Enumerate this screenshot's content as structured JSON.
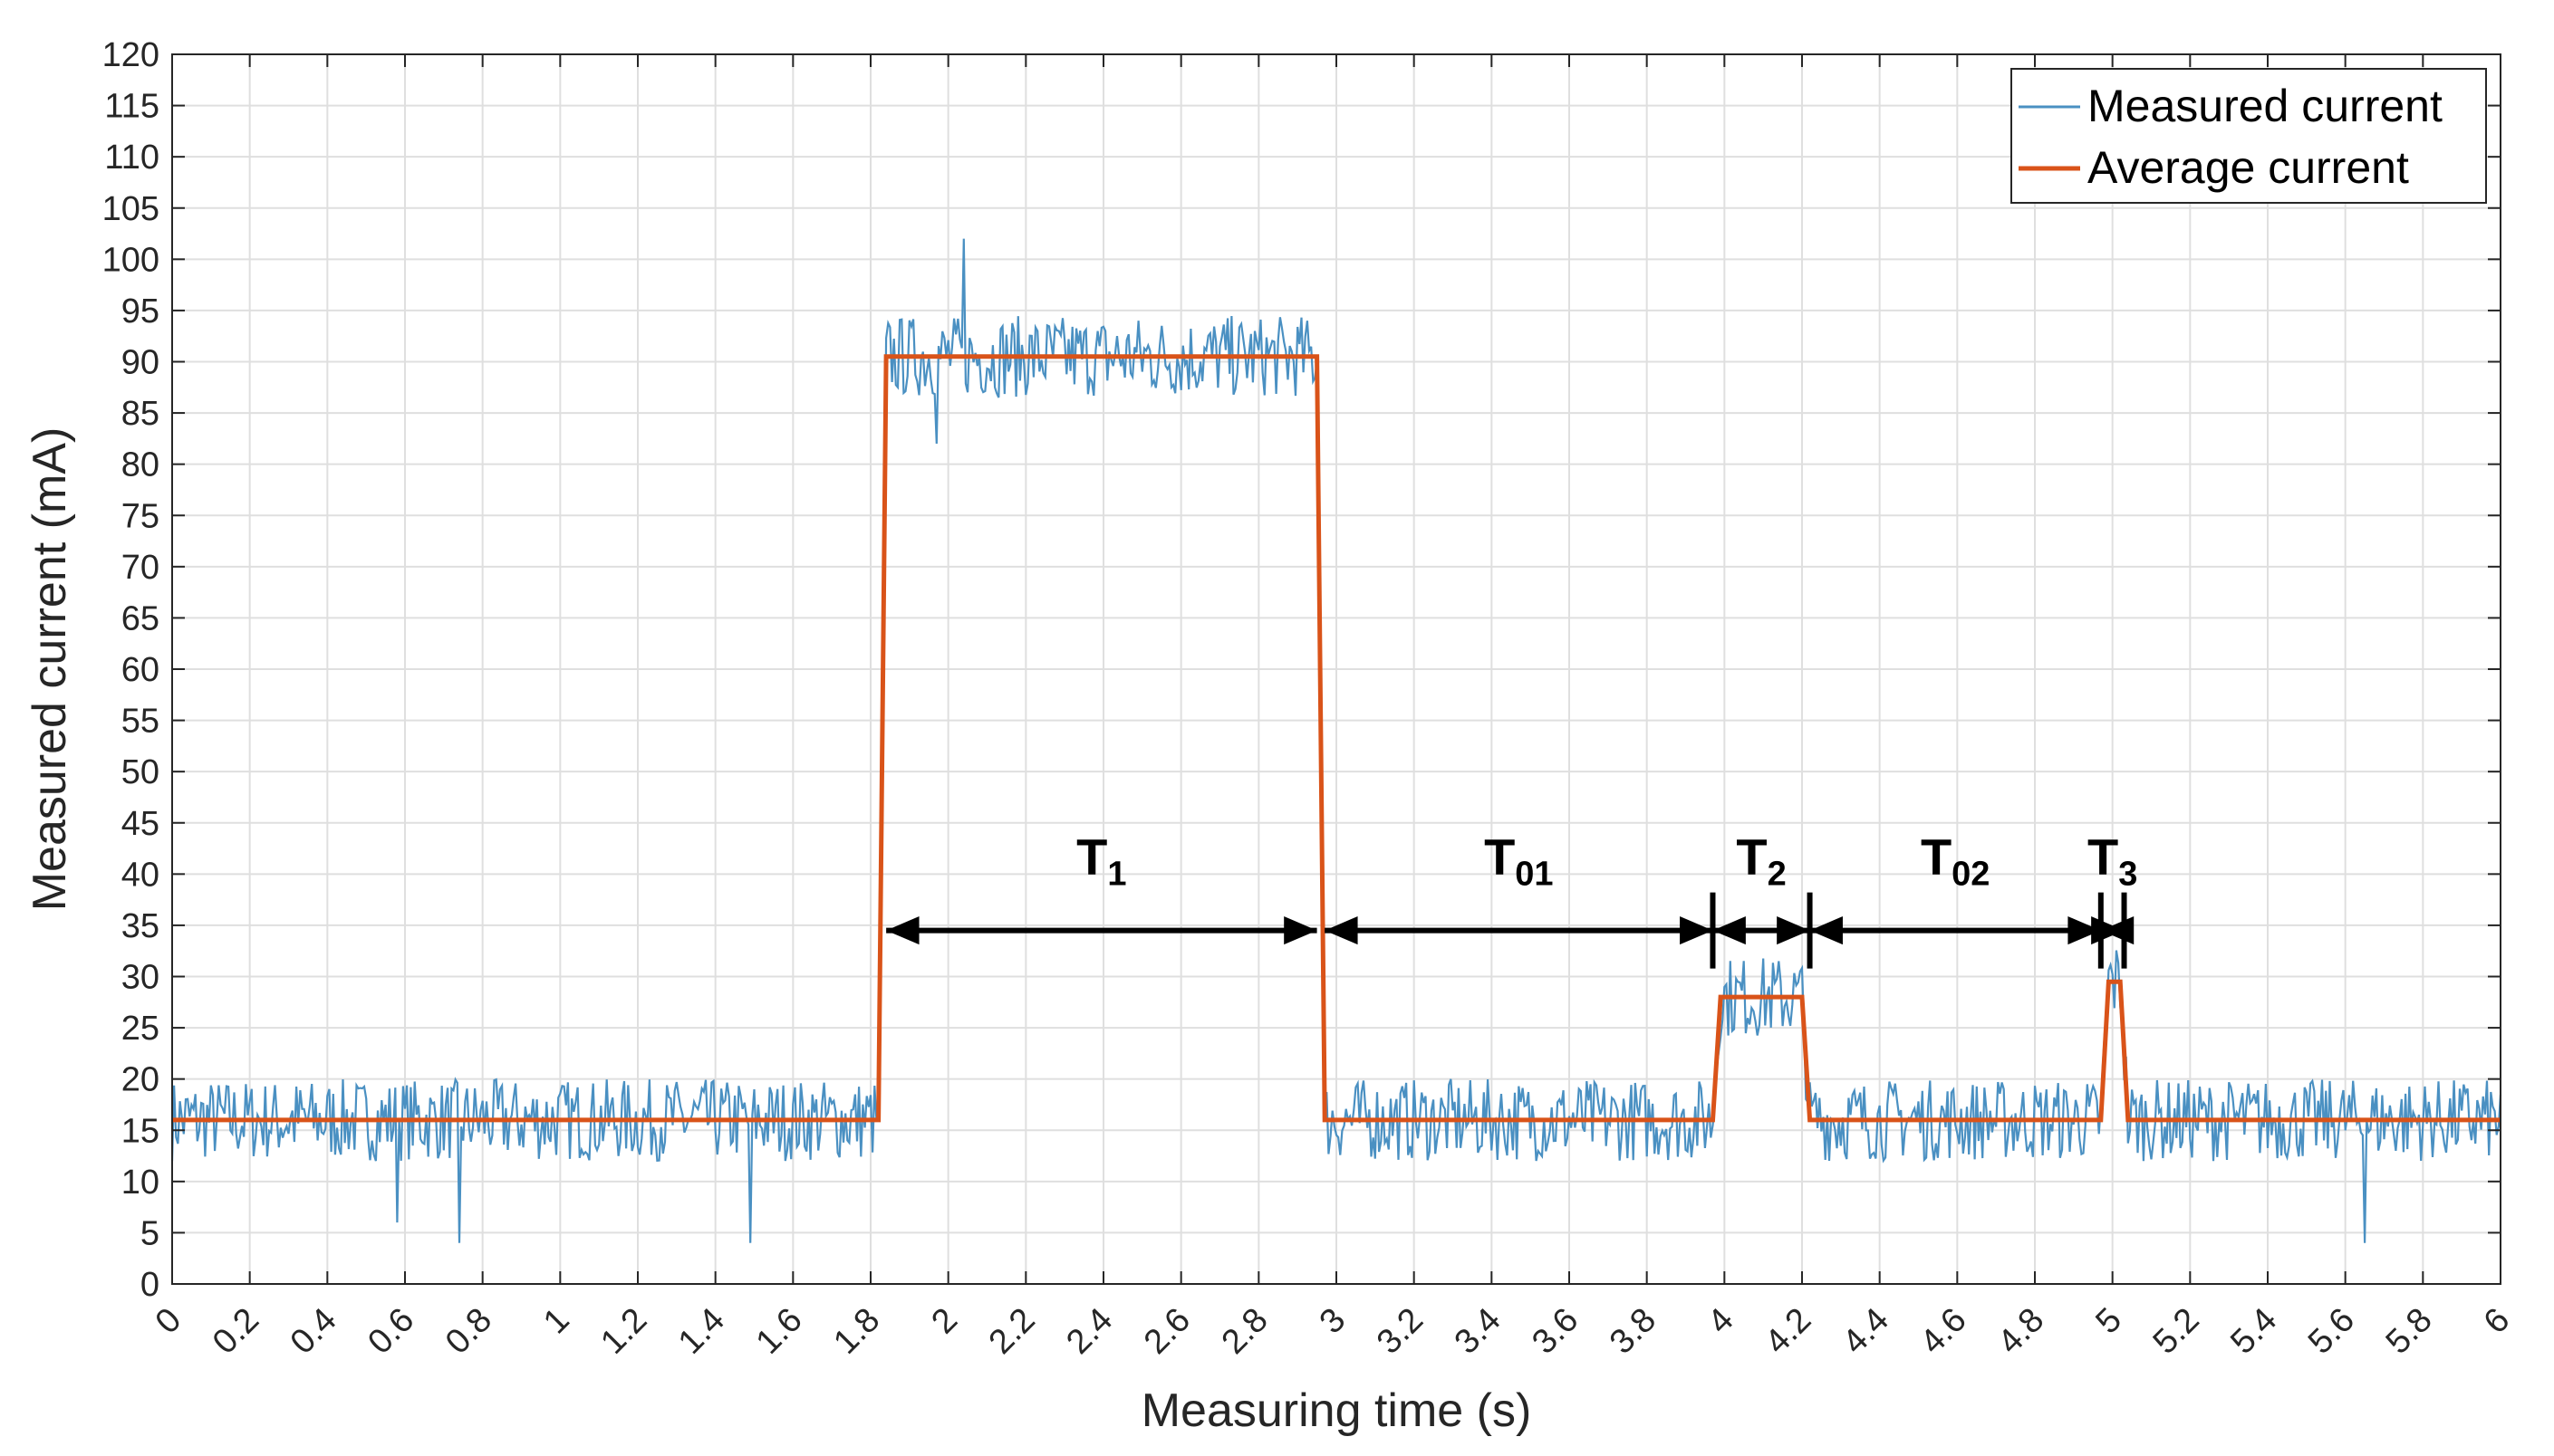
{
  "chart_data": {
    "type": "line",
    "title": "",
    "xlabel": "Measuring time (s)",
    "ylabel": "Measured current (mA)",
    "xlim": [
      0,
      6
    ],
    "ylim": [
      0,
      120
    ],
    "grid": true,
    "legend_position": "top-right",
    "x_ticks": [
      0,
      0.2,
      0.4,
      0.6,
      0.8,
      1,
      1.2,
      1.4,
      1.6,
      1.8,
      2,
      2.2,
      2.4,
      2.6,
      2.8,
      3,
      3.2,
      3.4,
      3.6,
      3.8,
      4,
      4.2,
      4.4,
      4.6,
      4.8,
      5,
      5.2,
      5.4,
      5.6,
      5.8,
      6
    ],
    "x_tick_labels": [
      "0",
      "0.2",
      "0.4",
      "0.6",
      "0.8",
      "1",
      "1.2",
      "1.4",
      "1.6",
      "1.8",
      "2",
      "2.2",
      "2.4",
      "2.6",
      "2.8",
      "3",
      "3.2",
      "3.4",
      "3.6",
      "3.8",
      "4",
      "4.2",
      "4.4",
      "4.6",
      "4.8",
      "5",
      "5.2",
      "5.4",
      "5.6",
      "5.8",
      "6"
    ],
    "y_ticks": [
      0,
      5,
      10,
      15,
      20,
      25,
      30,
      35,
      40,
      45,
      50,
      55,
      60,
      65,
      70,
      75,
      80,
      85,
      90,
      95,
      100,
      105,
      110,
      115,
      120
    ],
    "y_tick_labels": [
      "0",
      "5",
      "10",
      "15",
      "20",
      "25",
      "30",
      "35",
      "40",
      "45",
      "50",
      "55",
      "60",
      "65",
      "70",
      "75",
      "80",
      "85",
      "90",
      "95",
      "100",
      "105",
      "110",
      "115",
      "120"
    ],
    "series": [
      {
        "name": "Measured current",
        "color": "#4a90c2",
        "style": "noisy",
        "noise_amplitude_ma": 4,
        "notable_points": [
          [
            0.58,
            6
          ],
          [
            0.74,
            4
          ],
          [
            1.49,
            4
          ],
          [
            2.04,
            102
          ],
          [
            1.97,
            82
          ],
          [
            5.65,
            4
          ]
        ]
      },
      {
        "name": "Average current",
        "color": "#d95319",
        "x": [
          0,
          1.82,
          1.84,
          2.95,
          2.97,
          3.97,
          3.99,
          4.2,
          4.22,
          4.97,
          4.99,
          5.02,
          5.04,
          6
        ],
        "y": [
          16,
          16,
          90.5,
          90.5,
          16,
          16,
          28,
          28,
          16,
          16,
          29.5,
          29.5,
          16,
          16
        ]
      }
    ],
    "annotations": [
      {
        "main": "T",
        "sub": "1",
        "x_start": 1.84,
        "x_end": 2.95,
        "y": 34.5
      },
      {
        "main": "T",
        "sub": "01",
        "x_start": 2.97,
        "x_end": 3.97,
        "y": 34.5
      },
      {
        "main": "T",
        "sub": "2",
        "x_start": 3.97,
        "x_end": 4.22,
        "y": 34.5
      },
      {
        "main": "T",
        "sub": "02",
        "x_start": 4.22,
        "x_end": 4.97,
        "y": 34.5
      },
      {
        "main": "T",
        "sub": "3",
        "x_start": 4.97,
        "x_end": 5.03,
        "y": 34.5
      }
    ]
  }
}
